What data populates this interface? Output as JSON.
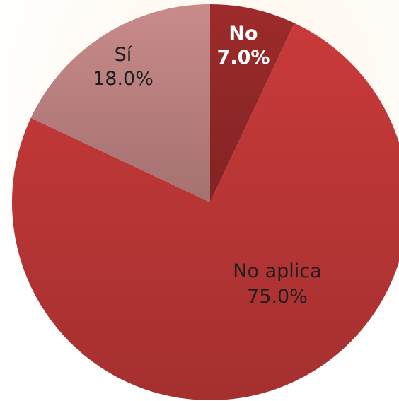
{
  "chart_data": {
    "type": "pie",
    "title": "",
    "slices": [
      {
        "label": "No",
        "value": 7.0,
        "value_label": "7.0%",
        "color": "#9e2b2b",
        "label_color": "#ffffff",
        "label_bold": true
      },
      {
        "label": "No aplica",
        "value": 75.0,
        "value_label": "75.0%",
        "color": "#c93a3a",
        "label_color": "#1f1f1f",
        "label_bold": false
      },
      {
        "label": "Sí",
        "value": 18.0,
        "value_label": "18.0%",
        "color": "#c98a8a",
        "label_color": "#1f1f1f",
        "label_bold": false
      }
    ],
    "start_angle": "12 o'clock",
    "direction": "clockwise",
    "legend": "none"
  }
}
